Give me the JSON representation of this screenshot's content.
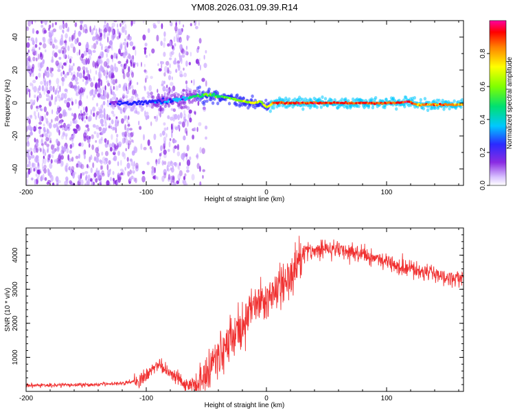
{
  "page_title": "YM08.2026.031.09.39.R14",
  "chart_data": [
    {
      "type": "heatmap",
      "title": "YM08.2026.031.09.39.R14",
      "xlabel": "Height of straight line (km)",
      "ylabel": "Frequency (Hz)",
      "xlim": [
        -200,
        164
      ],
      "ylim": [
        -50,
        50
      ],
      "x_ticks": [
        -200,
        -100,
        0,
        100
      ],
      "y_ticks": [
        -40,
        -20,
        0,
        20,
        40
      ],
      "colorbar": {
        "label": "Normalized spectral amplitude",
        "range": [
          0.0,
          1.0
        ],
        "ticks": [
          "0.0",
          "0.2",
          "0.4",
          "0.6",
          "0.8"
        ],
        "colormap": [
          "#ffffff",
          "#c9a4ff",
          "#8a2be2",
          "#2020ff",
          "#00c8ff",
          "#00e070",
          "#80ff00",
          "#ffff00",
          "#ff8000",
          "#ff0000",
          "#ff00a0"
        ]
      },
      "ridge": {
        "x": [
          -130,
          -110,
          -90,
          -70,
          -60,
          -50,
          -40,
          -30,
          -20,
          -10,
          -5,
          0,
          5,
          10,
          30,
          60,
          90,
          110,
          117,
          125,
          140,
          164
        ],
        "frequency": [
          0,
          0,
          1,
          2,
          4,
          5,
          4,
          3,
          1,
          0,
          1,
          -3,
          0,
          0,
          0,
          0,
          0,
          0,
          1,
          -1,
          -1,
          -1
        ],
        "amplitude": [
          0.25,
          0.3,
          0.35,
          0.4,
          0.55,
          0.6,
          0.55,
          0.6,
          0.65,
          0.7,
          0.7,
          0.7,
          0.85,
          0.9,
          0.92,
          0.9,
          0.9,
          0.88,
          0.95,
          0.85,
          0.85,
          0.8
        ]
      }
    },
    {
      "type": "line",
      "xlabel": "Height of straight line (km)",
      "ylabel": "SNR (10 * v/v)",
      "xlim": [
        -200,
        164
      ],
      "ylim": [
        0,
        4800
      ],
      "x_ticks": [
        -200,
        -100,
        0,
        100
      ],
      "y_ticks": [
        1000,
        2000,
        3000,
        4000
      ],
      "line_color": "#f03030",
      "series": [
        {
          "x": [
            -200,
            -180,
            -160,
            -140,
            -120,
            -110,
            -100,
            -95,
            -90,
            -85,
            -80,
            -75,
            -70,
            -65,
            -60,
            -55,
            -50,
            -45,
            -40,
            -35,
            -30,
            -25,
            -20,
            -15,
            -10,
            -5,
            0,
            5,
            10,
            15,
            20,
            25,
            30,
            40,
            50,
            60,
            70,
            80,
            90,
            100,
            110,
            120,
            130,
            140,
            150,
            160,
            164
          ],
          "y": [
            170,
            180,
            190,
            200,
            250,
            300,
            420,
            650,
            800,
            650,
            500,
            450,
            300,
            200,
            220,
            350,
            500,
            800,
            1000,
            1300,
            1500,
            1700,
            1900,
            2300,
            2500,
            2600,
            2700,
            2800,
            3000,
            3200,
            3400,
            3800,
            4050,
            4150,
            4200,
            4150,
            4100,
            4000,
            3950,
            3850,
            3700,
            3600,
            3550,
            3450,
            3350,
            3300,
            3300
          ]
        }
      ]
    }
  ]
}
